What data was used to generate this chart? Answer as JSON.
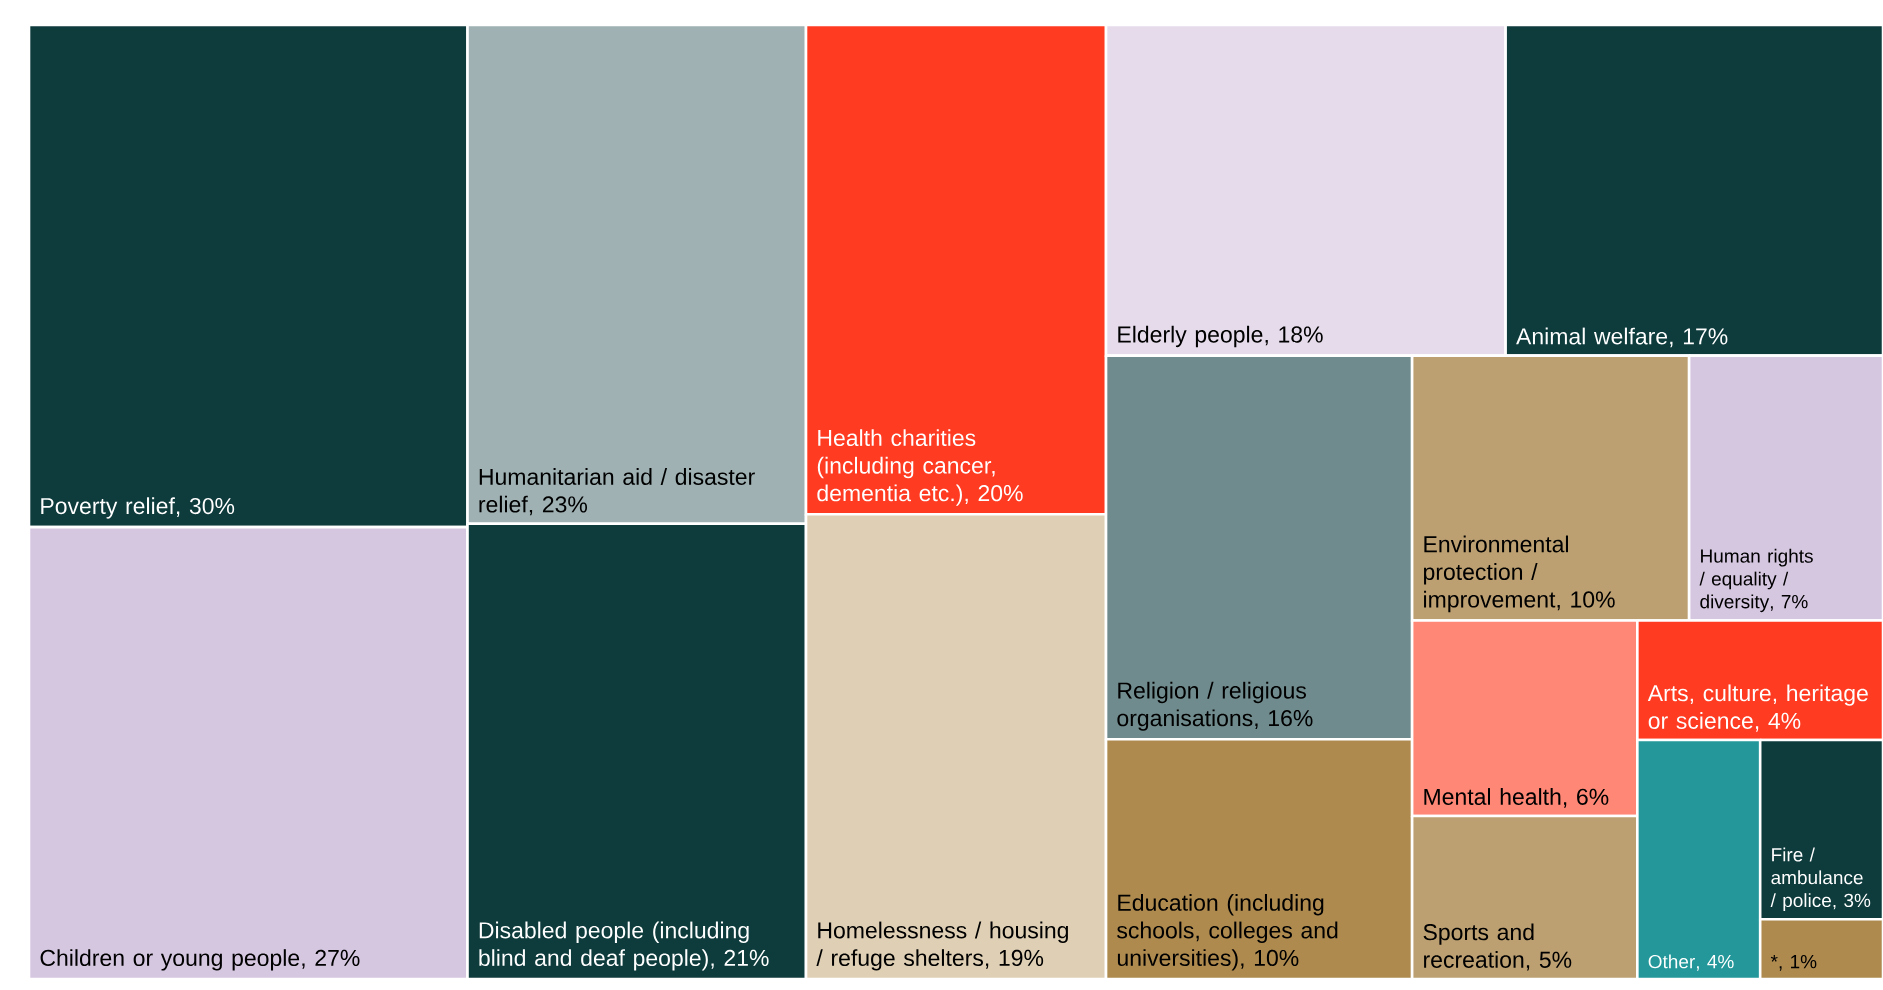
{
  "chart_data": {
    "type": "other",
    "categories": [
      "Poverty relief",
      "Children or young people",
      "Humanitarian aid / disaster relief",
      "Disabled people (including blind and deaf people)",
      "Health charities (including cancer, dementia etc.)",
      "Homelessness / housing / refuge shelters",
      "Elderly people",
      "Animal welfare",
      "Religion / religious organisations",
      "Education (including schools, colleges and universities)",
      "Environmental protection / improvement",
      "Human rights / equality / diversity",
      "Mental health",
      "Sports and recreation",
      "Arts, culture, heritage or science",
      "Other",
      "Fire / ambulance / police",
      "*"
    ],
    "values": [
      30,
      27,
      23,
      21,
      20,
      19,
      18,
      17,
      16,
      10,
      10,
      7,
      6,
      5,
      4,
      4,
      3,
      1
    ],
    "value_labels": [
      ", 30%",
      ", 27%",
      ", 23%",
      ", 21%",
      ", 20%",
      ", 19%",
      ", 18%",
      ", 17%",
      ", 16%",
      ", 10%",
      ", 10%",
      ", 7%",
      ", 6%",
      ", 5%",
      ", 4%",
      ", 4%",
      ", 3%",
      ", 1%"
    ],
    "colors": [
      "#0e3b3c",
      "#d6c7e1",
      "#9fb1b3",
      "#0e3b3c",
      "#ff3b22",
      "#dfd0b5",
      "#e6dbeb",
      "#0e3b3c",
      "#708b8d",
      "#ae8a4f",
      "#bda071",
      "#d6c7e1",
      "#ff8776",
      "#bda071",
      "#ff3b22",
      "#23979a",
      "#0e3b3c",
      "#ae8a4f"
    ]
  }
}
